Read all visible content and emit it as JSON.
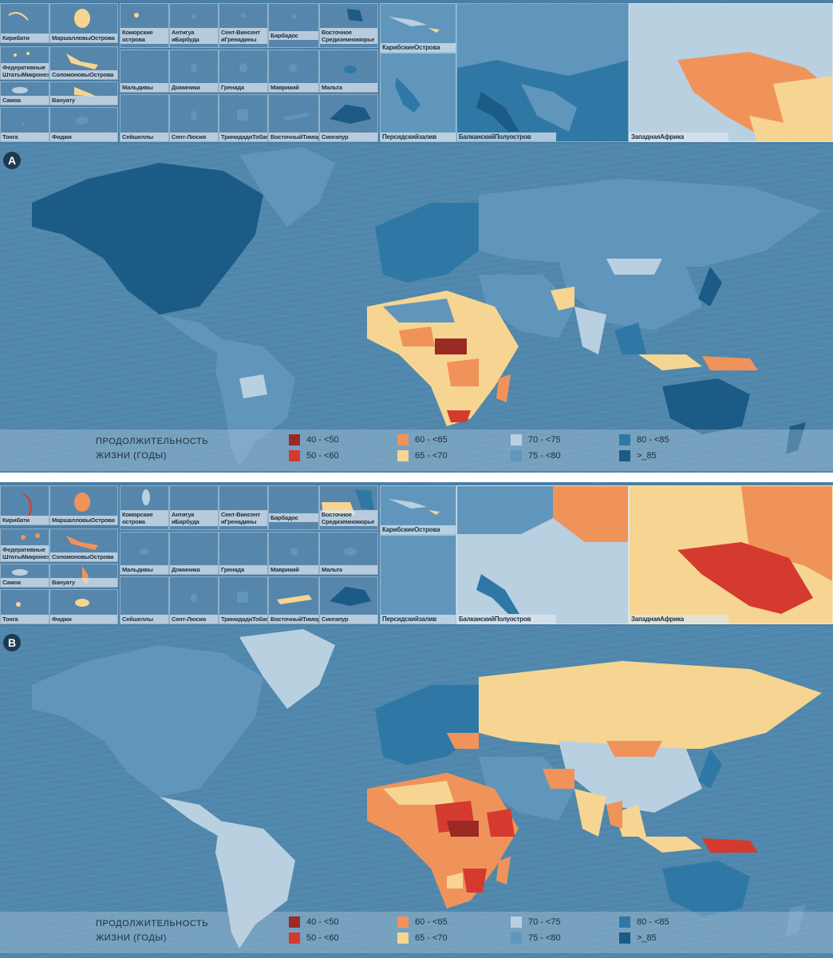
{
  "colors": {
    "c40_50": "#9a2a24",
    "c50_60": "#d53a2f",
    "c60_65": "#f0935a",
    "c65_70": "#f6d592",
    "c70_75": "#b9d0e1",
    "c75_80": "#6196bc",
    "c80_85": "#2f78a6",
    "c85plus": "#1b5b86",
    "ocean": "#4f86ab"
  },
  "legend": {
    "title": "ПРОДОЛЖИТЕЛЬНОСТЬ ЖИЗНИ (ГОДЫ)",
    "items": [
      {
        "label": "40 - <50",
        "color_key": "c40_50"
      },
      {
        "label": "50 - <60",
        "color_key": "c50_60"
      },
      {
        "label": "60 - <65",
        "color_key": "c60_65"
      },
      {
        "label": "65 - <70",
        "color_key": "c65_70"
      },
      {
        "label": "70 - <75",
        "color_key": "c70_75"
      },
      {
        "label": "75 - <80",
        "color_key": "c75_80"
      },
      {
        "label": "80 - <85",
        "color_key": "c80_85"
      },
      {
        "label": ">_85",
        "color_key": "c85plus"
      }
    ]
  },
  "panel_a": {
    "letter": "A",
    "insets": {
      "kiribati": "Кирибати",
      "marshall": "МаршалловыОстрова",
      "micronesia": "Федеративные ШтатыМикронезии",
      "solomon": "СоломоновыОстрова",
      "samoa": "Самоа",
      "vanuatu": "Вануату",
      "tonga": "Тонга",
      "fiji": "Фиджи",
      "comoros": "Коморские острова",
      "antigua": "Антигуа иБарбуда",
      "stvincent": "Сент-Винсент иГренадины",
      "barbados": "Барбадос",
      "eastmed": "Восточное Средиземноморье",
      "maldives": "Мальдивы",
      "dominica": "Доминика",
      "grenada": "Гренада",
      "mauritius": "Маврикий",
      "malta": "Мальта",
      "seychelles": "Сейшеллы",
      "stlucia": "Сент-Люсия",
      "trinidad": "ТринидадиТобаго",
      "easttimor": "ВосточныйТимор",
      "singapore": "Сингапур",
      "caribbean": "КарибскиеОстрова",
      "persian": "Персидскийзалив",
      "balkans": "БалканскийПолуостров",
      "westafrica": "ЗападнаяАфрика"
    }
  },
  "panel_b": {
    "letter": "B",
    "insets": {
      "kiribati": "Кирибати",
      "marshall": "МаршалловыОстрова",
      "micronesia": "Федеративные ШтатыМикронезии",
      "solomon": "СоломоновыОстрова",
      "samoa": "Самоа",
      "vanuatu": "Вануату",
      "tonga": "Тонга",
      "fiji": "Фиджи",
      "comoros": "Коморские острова",
      "antigua": "Антигуа иБарбуда",
      "stvincent": "Сент-Винсент иГренадины",
      "barbados": "Барбадос",
      "eastmed": "Восточное Средиземноморье",
      "maldives": "Мальдивы",
      "dominica": "Доминика",
      "grenada": "Гренада",
      "mauritius": "Маврикий",
      "malta": "Мальта",
      "seychelles": "Сейшеллы",
      "stlucia": "Сент-Люсия",
      "trinidad": "ТринидадиТобаго",
      "easttimor": "ВосточныйТимор",
      "singapore": "Сингапур",
      "caribbean": "КарибскиеОстрова",
      "persian": "Персидскийзалив",
      "balkans": "БалканскийПолуостров",
      "westafrica": "ЗападнаяАфрика"
    }
  }
}
